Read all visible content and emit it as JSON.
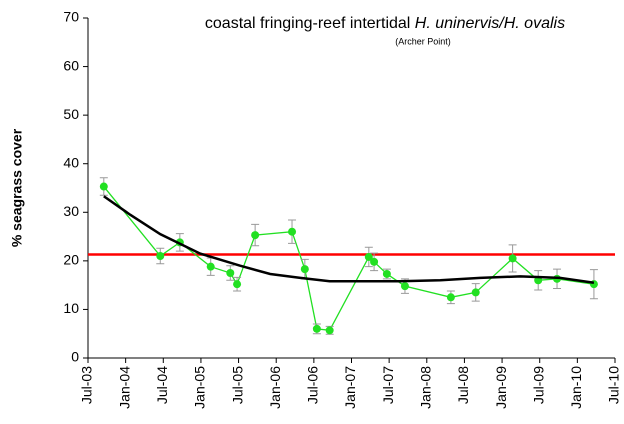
{
  "chart_data": {
    "type": "line",
    "title": "coastal fringing-reef intertidal",
    "title_italic": "H. uninervis/H. ovalis",
    "subtitle": "(Archer Point)",
    "y_label": "% seagrass cover",
    "xlim": [
      2003.5,
      2010.5
    ],
    "xticks": [
      {
        "value": 2003.5,
        "label": "Jul-03"
      },
      {
        "value": 2004.0,
        "label": "Jan-04"
      },
      {
        "value": 2004.5,
        "label": "Jul-04"
      },
      {
        "value": 2005.0,
        "label": "Jan-05"
      },
      {
        "value": 2005.5,
        "label": "Jul-05"
      },
      {
        "value": 2006.0,
        "label": "Jan-06"
      },
      {
        "value": 2006.5,
        "label": "Jul-06"
      },
      {
        "value": 2007.0,
        "label": "Jan-07"
      },
      {
        "value": 2007.5,
        "label": "Jul-07"
      },
      {
        "value": 2008.0,
        "label": "Jan-08"
      },
      {
        "value": 2008.5,
        "label": "Jul-08"
      },
      {
        "value": 2009.0,
        "label": "Jan-09"
      },
      {
        "value": 2009.5,
        "label": "Jul-09"
      },
      {
        "value": 2010.0,
        "label": "Jan-10"
      },
      {
        "value": 2010.5,
        "label": "Jul-10"
      }
    ],
    "ylim": [
      0,
      70
    ],
    "yticks": [
      0,
      10,
      20,
      30,
      40,
      50,
      60,
      70
    ],
    "series": [
      {
        "color": "#22e022",
        "error_color": "#999999",
        "x": [
          2003.71,
          2004.46,
          2004.72,
          2005.13,
          2005.39,
          2005.48,
          2005.72,
          2006.21,
          2006.38,
          2006.54,
          2006.71,
          2007.23,
          2007.3,
          2007.47,
          2007.71,
          2008.32,
          2008.65,
          2009.14,
          2009.48,
          2009.73,
          2010.22
        ],
        "values": [
          35.3,
          21,
          23.8,
          18.8,
          17.5,
          15.2,
          25.3,
          26,
          18.3,
          6,
          5.7,
          20.8,
          19.8,
          17.3,
          14.8,
          12.5,
          13.5,
          20.5,
          16,
          16.3,
          15.2
        ],
        "errors": [
          1.8,
          1.6,
          1.8,
          1.8,
          1.5,
          1.4,
          2.2,
          2.4,
          2,
          1,
          0.8,
          2,
          1.8,
          1,
          1.5,
          1.3,
          1.8,
          2.8,
          2,
          2,
          3
        ]
      },
      {
        "color": "#000000",
        "x": [
          2003.71,
          2004.06,
          2004.46,
          2004.99,
          2005.52,
          2005.92,
          2006.32,
          2006.71,
          2007.64,
          2008.18,
          2008.71,
          2009.24,
          2009.77,
          2010.22
        ],
        "values": [
          33.3,
          29.5,
          25.5,
          21.5,
          19,
          17.3,
          16.5,
          15.8,
          15.8,
          16,
          16.5,
          16.8,
          16.5,
          15.5
        ]
      }
    ],
    "reference_line": {
      "value": 21.3,
      "color": "#ff0000"
    }
  }
}
